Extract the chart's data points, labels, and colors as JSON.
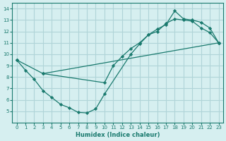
{
  "xlabel": "Humidex (Indice chaleur)",
  "line_color": "#1a7a6e",
  "bg_color": "#d6eff0",
  "grid_color": "#b0d4d8",
  "xlim": [
    -0.5,
    23.5
  ],
  "ylim": [
    4,
    14.5
  ],
  "xticks": [
    0,
    1,
    2,
    3,
    4,
    5,
    6,
    7,
    8,
    9,
    10,
    11,
    12,
    13,
    14,
    15,
    16,
    17,
    18,
    19,
    20,
    21,
    22,
    23
  ],
  "yticks": [
    5,
    6,
    7,
    8,
    9,
    10,
    11,
    12,
    13,
    14
  ],
  "line1_x": [
    0,
    1,
    2,
    3,
    4,
    5,
    6,
    7,
    8,
    9,
    10,
    13,
    14,
    15,
    16,
    17,
    18,
    19,
    20,
    21,
    22,
    23
  ],
  "line1_y": [
    9.5,
    8.6,
    7.8,
    6.8,
    6.2,
    5.6,
    5.3,
    4.9,
    4.85,
    5.2,
    6.5,
    10.0,
    10.9,
    11.7,
    12.2,
    12.6,
    13.8,
    13.1,
    13.0,
    12.8,
    12.3,
    11.0
  ],
  "line2_x": [
    0,
    3,
    23
  ],
  "line2_y": [
    9.5,
    8.3,
    11.0
  ],
  "line3_x": [
    3,
    10,
    11,
    12,
    13,
    14,
    15,
    16,
    17,
    18,
    19,
    20,
    21,
    22,
    23
  ],
  "line3_y": [
    8.3,
    7.5,
    9.0,
    9.8,
    10.5,
    11.0,
    11.7,
    12.0,
    12.7,
    13.1,
    13.0,
    12.9,
    12.3,
    11.9,
    11.0
  ]
}
